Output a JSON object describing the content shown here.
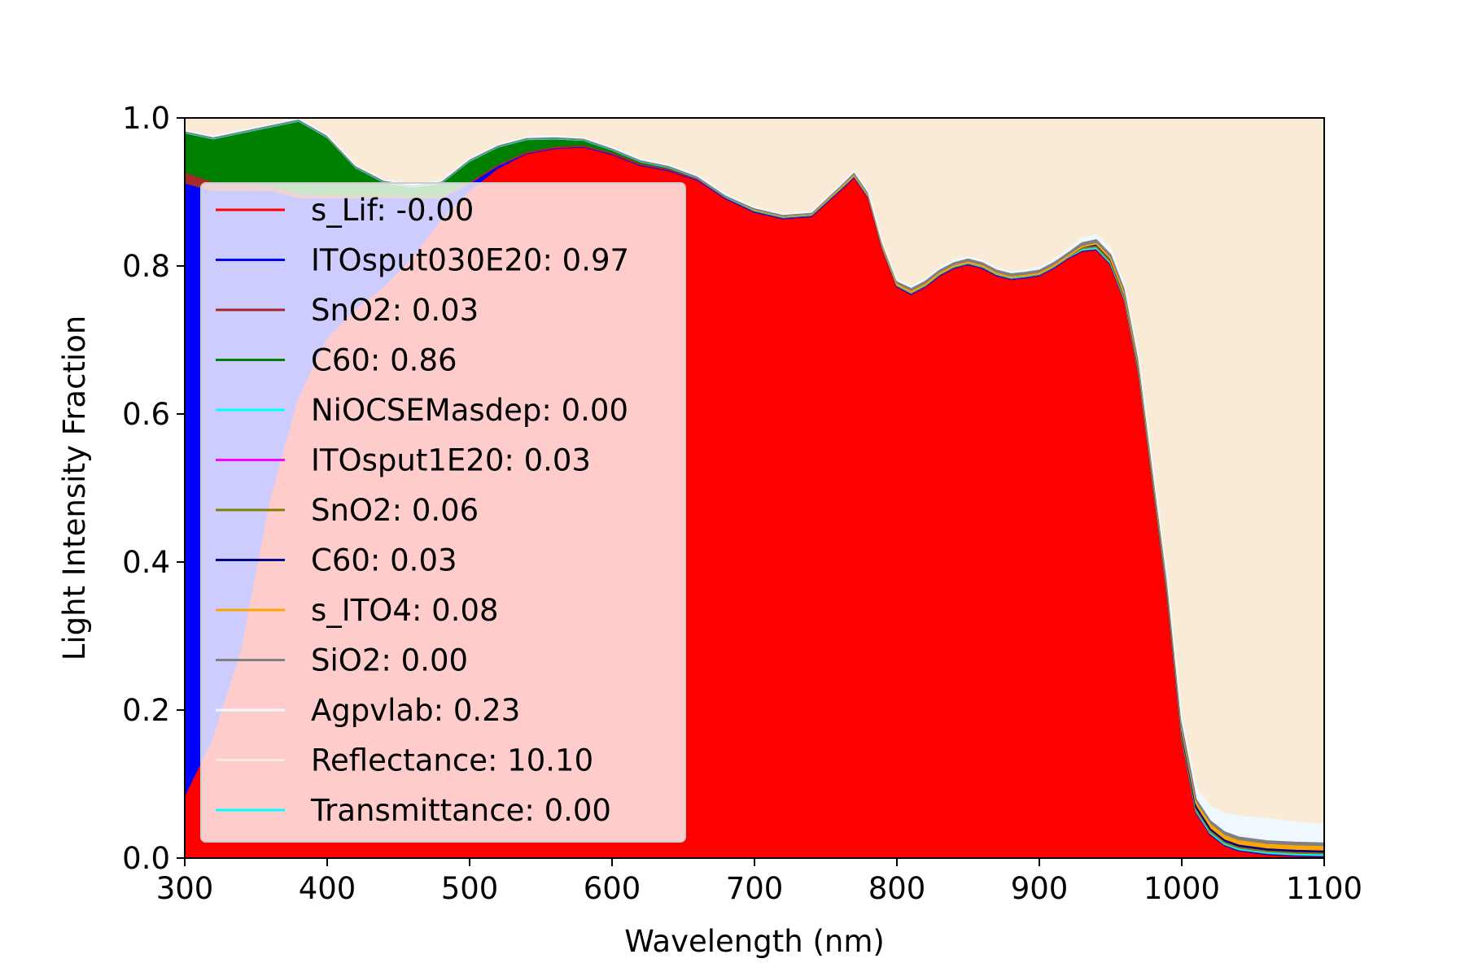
{
  "chart_data": {
    "type": "area",
    "title": "",
    "xlabel": "Wavelength (nm)",
    "ylabel": "Light Intensity Fraction",
    "xlim": [
      300,
      1100
    ],
    "ylim": [
      0,
      1
    ],
    "x_ticks": [
      "300",
      "400",
      "500",
      "600",
      "700",
      "800",
      "900",
      "1000",
      "1100"
    ],
    "y_ticks": [
      "0.0",
      "0.2",
      "0.4",
      "0.6",
      "0.8",
      "1.0"
    ],
    "grid": false,
    "legend_position": "upper-left",
    "stacked": true,
    "x": [
      300,
      320,
      340,
      360,
      380,
      400,
      420,
      440,
      460,
      480,
      500,
      520,
      540,
      560,
      580,
      600,
      620,
      640,
      660,
      680,
      700,
      720,
      740,
      760,
      770,
      780,
      790,
      800,
      810,
      820,
      830,
      840,
      850,
      860,
      870,
      880,
      890,
      900,
      910,
      920,
      930,
      940,
      950,
      960,
      970,
      980,
      990,
      1000,
      1010,
      1020,
      1030,
      1040,
      1060,
      1080,
      1100
    ],
    "series": [
      {
        "name": "s_Lif",
        "label": "s_Lif: -0.00",
        "color": "#ff0000",
        "fill": "#ff0000",
        "values": [
          0.08,
          0.16,
          0.28,
          0.48,
          0.62,
          0.7,
          0.74,
          0.77,
          0.81,
          0.86,
          0.9,
          0.93,
          0.95,
          0.957,
          0.96,
          0.95,
          0.935,
          0.928,
          0.915,
          0.89,
          0.872,
          0.863,
          0.866,
          0.9,
          0.918,
          0.89,
          0.82,
          0.77,
          0.76,
          0.77,
          0.785,
          0.795,
          0.8,
          0.795,
          0.785,
          0.78,
          0.782,
          0.785,
          0.795,
          0.808,
          0.818,
          0.82,
          0.8,
          0.75,
          0.65,
          0.5,
          0.35,
          0.16,
          0.06,
          0.03,
          0.015,
          0.008,
          0.003,
          0.001,
          0.0
        ]
      },
      {
        "name": "ITOsput030E20",
        "label": "ITOsput030E20: 0.97",
        "color": "#0000ff",
        "fill": "#0000ff",
        "values": [
          0.83,
          0.74,
          0.62,
          0.42,
          0.27,
          0.19,
          0.15,
          0.12,
          0.08,
          0.03,
          0.01,
          0.005,
          0.002,
          0.002,
          0.001,
          0.001,
          0.001,
          0.001,
          0.001,
          0.001,
          0.001,
          0.001,
          0.001,
          0.002,
          0.002,
          0.002,
          0.002,
          0.002,
          0.002,
          0.002,
          0.002,
          0.002,
          0.002,
          0.002,
          0.002,
          0.002,
          0.002,
          0.002,
          0.002,
          0.002,
          0.002,
          0.002,
          0.002,
          0.002,
          0.002,
          0.002,
          0.002,
          0.002,
          0.002,
          0.002,
          0.002,
          0.002,
          0.002,
          0.002,
          0.002
        ]
      },
      {
        "name": "SnO2",
        "label": "SnO2: 0.03",
        "color": "#a52a2a",
        "fill": "#a52a2a",
        "values": [
          0.015,
          0.012,
          0.01,
          0.008,
          0.006,
          0.004,
          0.003,
          0.003,
          0.002,
          0.002,
          0.002,
          0.001,
          0.001,
          0.001,
          0.001,
          0.001,
          0.001,
          0.001,
          0.001,
          0.001,
          0.001,
          0.001,
          0.001,
          0.001,
          0.001,
          0.001,
          0.001,
          0.001,
          0.001,
          0.001,
          0.001,
          0.001,
          0.001,
          0.001,
          0.001,
          0.001,
          0.001,
          0.001,
          0.001,
          0.001,
          0.001,
          0.001,
          0.001,
          0.001,
          0.001,
          0.001,
          0.001,
          0.001,
          0.001,
          0.001,
          0.001,
          0.001,
          0.001,
          0.001,
          0.001
        ]
      },
      {
        "name": "C60",
        "label": "C60: 0.86",
        "color": "#008000",
        "fill": "#008000",
        "values": [
          0.055,
          0.06,
          0.07,
          0.08,
          0.1,
          0.08,
          0.04,
          0.02,
          0.015,
          0.02,
          0.03,
          0.025,
          0.018,
          0.012,
          0.008,
          0.005,
          0.004,
          0.003,
          0.002,
          0.001,
          0.001,
          0.001,
          0.001,
          0.001,
          0.001,
          0.001,
          0.001,
          0.001,
          0.001,
          0.001,
          0.001,
          0.001,
          0.001,
          0.001,
          0.001,
          0.001,
          0.001,
          0.001,
          0.001,
          0.001,
          0.001,
          0.001,
          0.001,
          0.001,
          0.001,
          0.001,
          0.001,
          0.001,
          0.001,
          0.001,
          0.001,
          0.001,
          0.001,
          0.001,
          0.001
        ]
      },
      {
        "name": "NiOCSEMasdep",
        "label": "NiOCSEMasdep: 0.00",
        "color": "#00ffff",
        "fill": "#00ffff",
        "values": [
          0,
          0,
          0,
          0,
          0,
          0,
          0,
          0,
          0,
          0,
          0,
          0,
          0,
          0,
          0,
          0,
          0,
          0,
          0,
          0,
          0,
          0,
          0,
          0,
          0,
          0,
          0,
          0,
          0,
          0,
          0,
          0,
          0,
          0,
          0,
          0,
          0,
          0,
          0,
          0,
          0,
          0,
          0,
          0,
          0,
          0,
          0,
          0,
          0,
          0,
          0,
          0,
          0,
          0,
          0
        ]
      },
      {
        "name": "ITOsput1E20",
        "label": "ITOsput1E20: 0.03",
        "color": "#ff00ff",
        "fill": "#ff00ff",
        "values": [
          0.001,
          0.001,
          0.001,
          0.001,
          0.001,
          0.001,
          0.001,
          0.001,
          0.001,
          0.001,
          0.001,
          0.001,
          0.001,
          0.001,
          0.001,
          0.001,
          0.001,
          0.001,
          0.001,
          0.001,
          0.001,
          0.001,
          0.001,
          0.001,
          0.001,
          0.001,
          0.001,
          0.001,
          0.001,
          0.001,
          0.001,
          0.001,
          0.001,
          0.001,
          0.001,
          0.001,
          0.001,
          0.001,
          0.001,
          0.001,
          0.002,
          0.002,
          0.002,
          0.002,
          0.002,
          0.002,
          0.002,
          0.002,
          0.002,
          0.002,
          0.002,
          0.002,
          0.002,
          0.002,
          0.002
        ]
      },
      {
        "name": "SnO2",
        "label": "SnO2: 0.06",
        "color": "#808000",
        "fill": "#808000",
        "values": [
          0,
          0,
          0,
          0,
          0,
          0,
          0,
          0,
          0,
          0,
          0,
          0,
          0,
          0,
          0,
          0,
          0,
          0,
          0,
          0,
          0,
          0,
          0,
          0,
          0,
          0,
          0,
          0,
          0,
          0,
          0,
          0,
          0,
          0,
          0,
          0,
          0,
          0,
          0,
          0,
          0,
          0,
          0,
          0,
          0,
          0,
          0,
          0,
          0,
          0,
          0,
          0,
          0,
          0,
          0
        ]
      },
      {
        "name": "C60",
        "label": "C60: 0.03",
        "color": "#00008b",
        "fill": "#00008b",
        "values": [
          0,
          0,
          0,
          0,
          0,
          0,
          0,
          0,
          0,
          0,
          0,
          0,
          0,
          0,
          0,
          0,
          0,
          0,
          0,
          0,
          0,
          0,
          0,
          0,
          0,
          0,
          0,
          0,
          0,
          0,
          0,
          0,
          0,
          0,
          0,
          0,
          0,
          0,
          0,
          0,
          0.002,
          0.003,
          0.003,
          0.003,
          0.003,
          0.003,
          0.003,
          0.003,
          0.003,
          0.003,
          0.003,
          0.003,
          0.003,
          0.003,
          0.003
        ]
      },
      {
        "name": "s_ITO4",
        "label": "s_ITO4: 0.08",
        "color": "#ffa500",
        "fill": "#ffa500",
        "values": [
          0,
          0,
          0,
          0,
          0,
          0,
          0,
          0,
          0,
          0,
          0,
          0,
          0,
          0,
          0,
          0,
          0,
          0,
          0,
          0,
          0,
          0,
          0,
          0,
          0,
          0,
          0,
          0,
          0,
          0,
          0,
          0,
          0,
          0,
          0,
          0,
          0,
          0,
          0,
          0,
          0,
          0.001,
          0.001,
          0.001,
          0.002,
          0.002,
          0.003,
          0.004,
          0.005,
          0.006,
          0.006,
          0.006,
          0.006,
          0.006,
          0.006
        ]
      },
      {
        "name": "SiO2",
        "label": "SiO2: 0.00",
        "color": "#808080",
        "fill": "#808080",
        "values": [
          0,
          0,
          0,
          0,
          0,
          0,
          0,
          0,
          0,
          0,
          0,
          0,
          0,
          0,
          0,
          0,
          0,
          0,
          0,
          0,
          0.001,
          0.001,
          0.001,
          0.002,
          0.002,
          0.002,
          0.003,
          0.003,
          0.004,
          0.004,
          0.004,
          0.004,
          0.004,
          0.004,
          0.004,
          0.004,
          0.004,
          0.004,
          0.004,
          0.004,
          0.005,
          0.005,
          0.005,
          0.005,
          0.005,
          0.005,
          0.005,
          0.005,
          0.005,
          0.005,
          0.005,
          0.005,
          0.005,
          0.005,
          0.005
        ]
      },
      {
        "name": "Agpvlab",
        "label": "Agpvlab: 0.23",
        "color": "#f0f8ff",
        "fill": "#f0f8ff",
        "values": [
          0.002,
          0.002,
          0.002,
          0.002,
          0.002,
          0.002,
          0.002,
          0.002,
          0.002,
          0.002,
          0.002,
          0.002,
          0.002,
          0.002,
          0.002,
          0.002,
          0.002,
          0.002,
          0.002,
          0.002,
          0.002,
          0.002,
          0.002,
          0.002,
          0.003,
          0.003,
          0.003,
          0.003,
          0.003,
          0.003,
          0.003,
          0.003,
          0.003,
          0.003,
          0.003,
          0.003,
          0.003,
          0.003,
          0.004,
          0.005,
          0.006,
          0.007,
          0.008,
          0.008,
          0.008,
          0.008,
          0.009,
          0.01,
          0.015,
          0.02,
          0.025,
          0.028,
          0.03,
          0.027,
          0.025
        ]
      },
      {
        "name": "Reflectance",
        "label": "Reflectance: 10.10",
        "color": "#faebd7",
        "fill": "#faebd7",
        "values": "remainder"
      },
      {
        "name": "Transmittance",
        "label": "Transmittance: 0.00",
        "color": "#00ffff",
        "fill": "#00ffff",
        "values": [
          0,
          0,
          0,
          0,
          0,
          0,
          0,
          0,
          0,
          0,
          0,
          0,
          0,
          0,
          0,
          0,
          0,
          0,
          0,
          0,
          0,
          0,
          0,
          0,
          0,
          0,
          0,
          0,
          0,
          0,
          0,
          0,
          0,
          0,
          0,
          0,
          0,
          0,
          0,
          0,
          0,
          0,
          0,
          0,
          0,
          0,
          0,
          0,
          0,
          0,
          0,
          0,
          0,
          0,
          0
        ]
      }
    ]
  }
}
